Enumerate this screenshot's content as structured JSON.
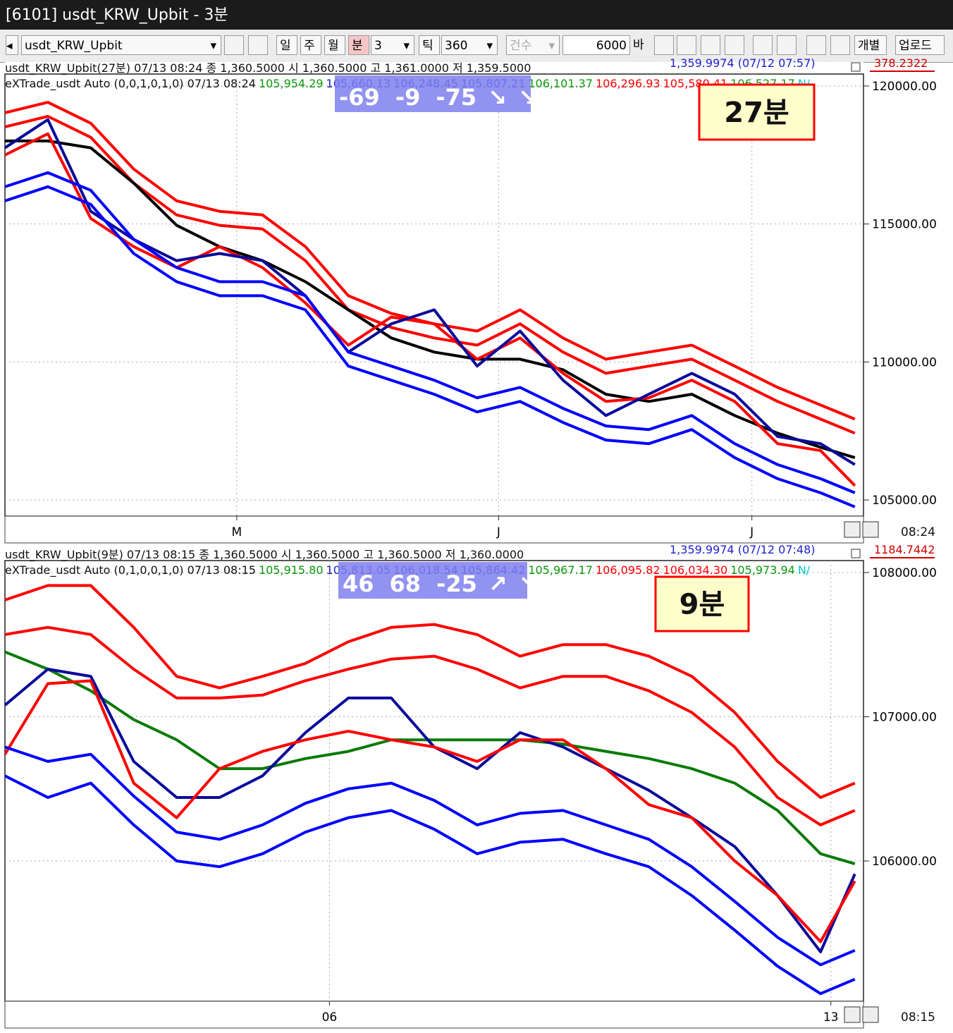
{
  "window": {
    "title": "[6101] usdt_KRW_Upbit - 3분"
  },
  "toolbar": {
    "symbol": "usdt_KRW_Upbit",
    "buttons": [
      "일",
      "주",
      "월",
      "분"
    ],
    "period": "3",
    "tick_label": "틱",
    "tick": "360",
    "count_label": "건수",
    "bars": "6000",
    "bars_unit": "바",
    "extra": [
      "개별",
      "업로드"
    ]
  },
  "chart_data": [
    {
      "type": "line",
      "header": "usdt_KRW_Upbit(27분) 07/13 08:24   종 1,360.5000   시 1,360.5000  고 1,361.0000  저 1,359.5000",
      "reference": "1,359.9974 (07/12 07:57)",
      "top_label": "378.2322",
      "indicator": "eXTrade_usdt Auto  (0,0,1,0,1,0) 07/13 08:24",
      "indicator_values": [
        {
          "text": "105,954.29",
          "color": "#0a9a0a"
        },
        {
          "text": "105,660.13",
          "color": "#2020c0"
        },
        {
          "text": "106,248.45",
          "color": "#2020c0"
        },
        {
          "text": "105,807.21",
          "color": "#2020c0"
        },
        {
          "text": "106,101.37",
          "color": "#0a9a0a"
        },
        {
          "text": "106,296.93",
          "color": "#ff0000"
        },
        {
          "text": "105,580.41",
          "color": "#ff0000"
        },
        {
          "text": "106,527.17",
          "color": "#0a9a0a"
        },
        {
          "text": "N/",
          "color": "#00c8c8"
        }
      ],
      "signal": {
        "values": [
          -69,
          -9,
          -75
        ],
        "arrows": [
          "↘",
          "↘"
        ]
      },
      "annotation": "27분",
      "time": "08:24",
      "xlim": [
        0,
        100
      ],
      "ylim": [
        104413,
        120434
      ],
      "yticks": [
        {
          "value": 120000,
          "label": "120000.00"
        },
        {
          "value": 115000,
          "label": "115000.00"
        },
        {
          "value": 110000,
          "label": "110000.00"
        },
        {
          "value": 105000,
          "label": "105000.00"
        }
      ],
      "xticks": [
        {
          "value": 27,
          "label": "M"
        },
        {
          "value": 57.5,
          "label": "J"
        },
        {
          "value": 87,
          "label": "J"
        }
      ],
      "grid": true,
      "x": [
        0,
        5,
        10,
        15,
        20,
        25,
        30,
        35,
        40,
        45,
        50,
        55,
        60,
        65,
        70,
        75,
        80,
        85,
        90,
        95,
        99
      ],
      "series": [
        {
          "color": "#ff0000",
          "values": [
            119030,
            119410,
            118650,
            116990,
            115840,
            115460,
            115330,
            114180,
            112400,
            111760,
            111380,
            111120,
            111890,
            110870,
            110100,
            110360,
            110610,
            109850,
            109080,
            108440,
            107930
          ]
        },
        {
          "color": "#ff0000",
          "values": [
            118520,
            118900,
            118140,
            116480,
            115330,
            114950,
            114820,
            113670,
            111890,
            111250,
            110870,
            110610,
            111380,
            110360,
            109590,
            109850,
            110100,
            109340,
            108570,
            107930,
            107420
          ]
        },
        {
          "color": "#000000",
          "values": [
            118010,
            118010,
            117760,
            116480,
            114950,
            114180,
            113670,
            112910,
            111890,
            110870,
            110360,
            110100,
            110100,
            109720,
            108830,
            108570,
            108830,
            108060,
            107420,
            106910,
            106530
          ]
        },
        {
          "color": "#ff0000",
          "values": [
            117500,
            118270,
            115200,
            114180,
            113420,
            114180,
            113420,
            112140,
            110610,
            111630,
            111380,
            110100,
            110870,
            109590,
            108570,
            108700,
            109340,
            108570,
            107040,
            106790,
            105520
          ]
        },
        {
          "color": "#0a0a9a",
          "values": [
            117760,
            118780,
            115460,
            114440,
            113670,
            113930,
            113670,
            112400,
            110360,
            111380,
            111890,
            109850,
            111120,
            109340,
            108060,
            108830,
            109590,
            108830,
            107300,
            107040,
            106280
          ]
        },
        {
          "color": "#0000ff",
          "values": [
            116350,
            116860,
            116220,
            114440,
            113420,
            112910,
            112910,
            112400,
            110360,
            109850,
            109340,
            108700,
            109080,
            108320,
            107680,
            107550,
            108060,
            107040,
            106280,
            105770,
            105260
          ]
        },
        {
          "color": "#0000ff",
          "values": [
            115840,
            116350,
            115710,
            113930,
            112910,
            112400,
            112400,
            111890,
            109850,
            109340,
            108830,
            108190,
            108570,
            107810,
            107170,
            107040,
            107550,
            106530,
            105770,
            105260,
            104750
          ]
        }
      ]
    },
    {
      "type": "line",
      "header": "usdt_KRW_Upbit(9분) 07/13 08:15   종 1,360.5000   시 1,360.5000  고 1,360.5000  저 1,360.0000",
      "reference": "1,359.9974 (07/12 07:48)",
      "top_label": "1184.7442",
      "indicator": "eXTrade_usdt Auto  (0,1,0,0,1,0) 07/13 08:15",
      "indicator_values": [
        {
          "text": "105,915.80",
          "color": "#0a9a0a"
        },
        {
          "text": "105,813.05",
          "color": "#2020c0"
        },
        {
          "text": "106,018.54",
          "color": "#2020c0"
        },
        {
          "text": "105,864.42",
          "color": "#2020c0"
        },
        {
          "text": "105,967.17",
          "color": "#0a9a0a"
        },
        {
          "text": "106,095.82",
          "color": "#ff0000"
        },
        {
          "text": "106,034.30",
          "color": "#ff0000"
        },
        {
          "text": "105,973.94",
          "color": "#0a9a0a"
        },
        {
          "text": "N/",
          "color": "#00c8c8"
        }
      ],
      "signal": {
        "values": [
          46,
          68,
          -25
        ],
        "arrows": [
          "↗",
          "↘"
        ]
      },
      "annotation": "9분",
      "time": "08:15",
      "xlim": [
        0,
        100
      ],
      "ylim": [
        105027,
        108083
      ],
      "yticks": [
        {
          "value": 108000,
          "label": "108000.00"
        },
        {
          "value": 107000,
          "label": "107000.00"
        },
        {
          "value": 106000,
          "label": "106000.00"
        }
      ],
      "xticks": [
        {
          "value": 37.8,
          "label": "06"
        },
        {
          "value": 96.2,
          "label": "13"
        }
      ],
      "grid": true,
      "x": [
        0,
        5,
        10,
        15,
        20,
        25,
        30,
        35,
        40,
        45,
        50,
        55,
        60,
        65,
        70,
        75,
        80,
        85,
        90,
        95,
        99
      ],
      "series": [
        {
          "color": "#ff0000",
          "values": [
            107810,
            107910,
            107910,
            107620,
            107280,
            107200,
            107280,
            107370,
            107520,
            107620,
            107640,
            107570,
            107420,
            107500,
            107500,
            107420,
            107280,
            107030,
            106690,
            106440,
            106540
          ]
        },
        {
          "color": "#ff0000",
          "values": [
            107570,
            107620,
            107570,
            107330,
            107130,
            107130,
            107150,
            107250,
            107330,
            107400,
            107420,
            107330,
            107200,
            107280,
            107280,
            107180,
            107030,
            106790,
            106440,
            106250,
            106350
          ]
        },
        {
          "color": "#0a7a0a",
          "values": [
            107450,
            107330,
            107180,
            106980,
            106840,
            106640,
            106640,
            106710,
            106760,
            106840,
            106840,
            106840,
            106840,
            106810,
            106760,
            106710,
            106640,
            106540,
            106350,
            106050,
            105980
          ]
        },
        {
          "color": "#0a0a9a",
          "values": [
            107080,
            107330,
            107280,
            106690,
            106440,
            106440,
            106590,
            106890,
            107130,
            107130,
            106790,
            106640,
            106890,
            106790,
            106640,
            106490,
            106300,
            106100,
            105760,
            105370,
            105910
          ]
        },
        {
          "color": "#ff0000",
          "values": [
            106740,
            107230,
            107250,
            106540,
            106300,
            106640,
            106760,
            106840,
            106900,
            106840,
            106790,
            106690,
            106840,
            106840,
            106640,
            106390,
            106300,
            106000,
            105760,
            105440,
            105860
          ]
        },
        {
          "color": "#0000ff",
          "values": [
            106790,
            106690,
            106740,
            106450,
            106200,
            106150,
            106250,
            106400,
            106500,
            106540,
            106420,
            106250,
            106330,
            106350,
            106250,
            106150,
            105960,
            105720,
            105470,
            105280,
            105380
          ]
        },
        {
          "color": "#0000ff",
          "values": [
            106590,
            106440,
            106540,
            106250,
            106000,
            105960,
            106050,
            106200,
            106300,
            106350,
            106220,
            106050,
            106130,
            106150,
            106050,
            105960,
            105760,
            105520,
            105270,
            105080,
            105180
          ]
        }
      ]
    }
  ]
}
